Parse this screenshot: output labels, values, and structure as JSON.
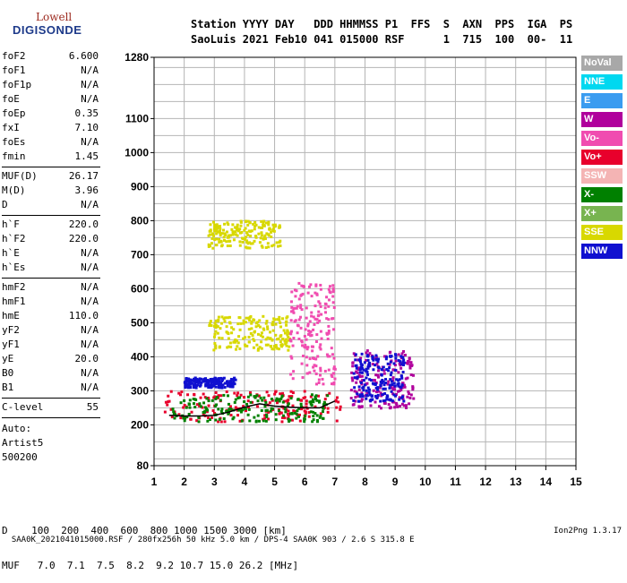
{
  "logo": {
    "line1": "Lowell",
    "line2": "DIGISONDE"
  },
  "header": {
    "row1": "Station YYYY DAY   DDD HHMMSS P1  FFS  S  AXN  PPS  IGA  PS",
    "row2": "SaoLuis 2021 Feb10 041 015000 RSF      1  715  100  00-  11"
  },
  "params": {
    "group1": [
      {
        "name": "foF2",
        "value": "6.600"
      },
      {
        "name": "foF1",
        "value": "N/A"
      },
      {
        "name": "foF1p",
        "value": "N/A"
      },
      {
        "name": "foE",
        "value": "N/A"
      },
      {
        "name": "foEp",
        "value": "0.35"
      },
      {
        "name": "fxI",
        "value": "7.10"
      },
      {
        "name": "foEs",
        "value": "N/A"
      },
      {
        "name": "fmin",
        "value": "1.45"
      }
    ],
    "group2": [
      {
        "name": "MUF(D)",
        "value": "26.17"
      },
      {
        "name": "M(D)",
        "value": "3.96"
      },
      {
        "name": "D",
        "value": "N/A"
      }
    ],
    "group3": [
      {
        "name": "h`F",
        "value": "220.0"
      },
      {
        "name": "h`F2",
        "value": "220.0"
      },
      {
        "name": "h`E",
        "value": "N/A"
      },
      {
        "name": "h`Es",
        "value": "N/A"
      }
    ],
    "group4": [
      {
        "name": "hmF2",
        "value": "N/A"
      },
      {
        "name": "hmF1",
        "value": "N/A"
      },
      {
        "name": "hmE",
        "value": "110.0"
      },
      {
        "name": "yF2",
        "value": "N/A"
      },
      {
        "name": "yF1",
        "value": "N/A"
      },
      {
        "name": "yE",
        "value": "20.0"
      },
      {
        "name": "B0",
        "value": "N/A"
      },
      {
        "name": "B1",
        "value": "N/A"
      }
    ],
    "clevel": {
      "name": "C-level",
      "value": "55"
    },
    "auto": [
      "Auto:",
      "Artist5",
      "500200"
    ]
  },
  "legend": [
    {
      "label": "NoVal",
      "color": "#a8a8a8"
    },
    {
      "label": "NNE",
      "color": "#00d8f0"
    },
    {
      "label": "E",
      "color": "#3a9cf0"
    },
    {
      "label": "W",
      "color": "#b0009c"
    },
    {
      "label": "Vo-",
      "color": "#f04cb0"
    },
    {
      "label": "Vo+",
      "color": "#e8002c"
    },
    {
      "label": "SSW",
      "color": "#f4b4b4"
    },
    {
      "label": "X-",
      "color": "#008000"
    },
    {
      "label": "X+",
      "color": "#78b450"
    },
    {
      "label": "SSE",
      "color": "#d8d800"
    },
    {
      "label": "NNW",
      "color": "#1010d0"
    }
  ],
  "freq_table": {
    "row1": "D    100  200  400  600  800 1000 1500 3000 [km]",
    "row2": "MUF   7.0  7.1  7.5  8.2  9.2 10.7 15.0 26.2 [MHz]"
  },
  "footer": {
    "left": "SAA0K_2021041015000.RSF / 280fx256h 50 kHz 5.0 km / DPS-4 SAA0K 903 / 2.6 S 315.8 E",
    "right": "Ion2Png 1.3.17"
  },
  "chart_data": {
    "type": "scatter",
    "xlim": [
      1,
      15
    ],
    "ylim": [
      80,
      1280
    ],
    "x_ticks": [
      1,
      2,
      3,
      4,
      5,
      6,
      7,
      8,
      9,
      10,
      11,
      12,
      13,
      14,
      15
    ],
    "y_ticks": [
      80,
      200,
      300,
      400,
      500,
      600,
      700,
      800,
      900,
      1000,
      1100,
      1280
    ],
    "grid": true,
    "trace": {
      "name": "",
      "color": "#000000",
      "x": [
        1.5,
        2.0,
        2.5,
        3.0,
        3.5,
        4.0,
        4.5,
        5.0,
        5.5,
        6.0,
        6.5,
        7.0
      ],
      "y": [
        228,
        226,
        226,
        228,
        238,
        252,
        262,
        255,
        252,
        250,
        250,
        270
      ]
    },
    "clusters": [
      {
        "color_key": "Vo+",
        "x_range": [
          1.3,
          7.2
        ],
        "y_range": [
          210,
          300
        ]
      },
      {
        "color_key": "X-",
        "x_range": [
          1.6,
          6.8
        ],
        "y_range": [
          210,
          290
        ]
      },
      {
        "color_key": "NNW",
        "x_range": [
          2.0,
          3.7
        ],
        "y_range": [
          310,
          340
        ]
      },
      {
        "color_key": "W",
        "x_range": [
          7.5,
          9.6
        ],
        "y_range": [
          250,
          420
        ]
      },
      {
        "color_key": "NNW",
        "x_range": [
          7.6,
          9.3
        ],
        "y_range": [
          270,
          410
        ]
      },
      {
        "color_key": "SSE",
        "x_range": [
          2.8,
          5.2
        ],
        "y_range": [
          720,
          800
        ]
      },
      {
        "color_key": "SSE",
        "x_range": [
          2.8,
          5.5
        ],
        "y_range": [
          420,
          520
        ]
      },
      {
        "color_key": "Vo-",
        "x_range": [
          5.5,
          7.0
        ],
        "y_range": [
          320,
          620
        ]
      }
    ]
  }
}
